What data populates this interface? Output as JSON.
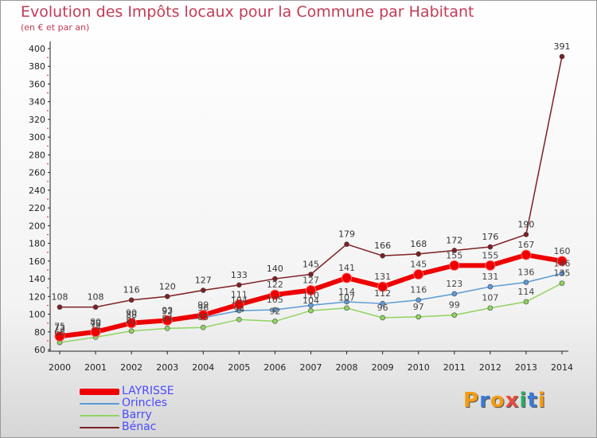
{
  "title": "Evolution des Impôts locaux pour la Commune par Habitant",
  "subtitle": "(en € et par an)",
  "logo": {
    "letters": [
      "P",
      "r",
      "o",
      "x",
      "i",
      "t",
      "i"
    ],
    "colors": [
      "#f39c12",
      "#3a7bd5",
      "#f39c12",
      "#e74c3c",
      "#27ae60",
      "#3a7bd5",
      "#f39c12"
    ]
  },
  "chart_data": {
    "type": "line",
    "title": "Evolution des Impôts locaux pour la Commune par Habitant",
    "xlabel": "",
    "ylabel": "",
    "x": [
      "2000",
      "2001",
      "2002",
      "2003",
      "2004",
      "2005",
      "2006",
      "2007",
      "2008",
      "2009",
      "2010",
      "2011",
      "2012",
      "2013",
      "2014"
    ],
    "ylim": [
      60,
      400
    ],
    "yticks": [
      60,
      80,
      100,
      120,
      140,
      160,
      180,
      200,
      220,
      240,
      260,
      280,
      300,
      320,
      340,
      360,
      380,
      400
    ],
    "grid": false,
    "legend": "bottom-left",
    "series": [
      {
        "name": "LAYRISSE",
        "color": "#ee0000",
        "values": [
          75,
          80,
          90,
          93,
          99,
          111,
          122,
          127,
          141,
          131,
          145,
          155,
          155,
          167,
          160
        ]
      },
      {
        "name": "Orincles",
        "color": "#5b9bd5",
        "values": [
          73,
          78,
          88,
          92,
          96,
          104,
          105,
          110,
          114,
          112,
          116,
          123,
          131,
          136,
          146
        ]
      },
      {
        "name": "Barry",
        "color": "#8fd460",
        "values": [
          68,
          74,
          81,
          84,
          85,
          94,
          92,
          104,
          107,
          96,
          97,
          99,
          107,
          114,
          135
        ]
      },
      {
        "name": "Bénac",
        "color": "#7f1f24",
        "values": [
          108,
          108,
          116,
          120,
          127,
          133,
          140,
          145,
          179,
          166,
          168,
          172,
          176,
          190,
          391
        ]
      }
    ]
  }
}
